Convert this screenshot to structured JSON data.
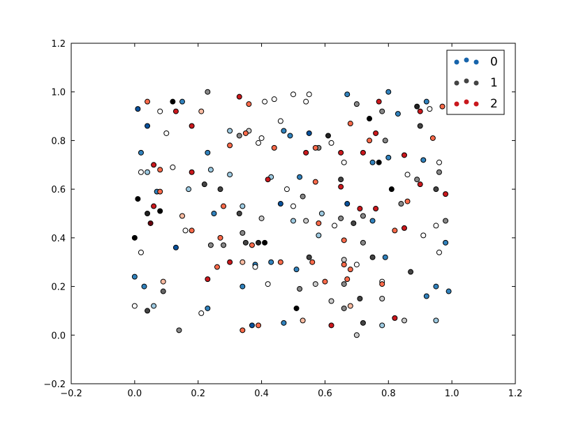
{
  "chart_data": {
    "type": "scatter",
    "xlim": [
      -0.2,
      1.2
    ],
    "xticks": [
      {
        "value": -0.2,
        "label": "−0.2"
      },
      {
        "value": 0,
        "label": "0.0"
      },
      0.2,
      0.4,
      0.6,
      0.8,
      {
        "value": 1,
        "label": "1.0"
      },
      1.2
    ],
    "ylim": [
      -0.2,
      1.2
    ],
    "yticks": [
      {
        "value": -0.2,
        "label": "−0.2"
      },
      {
        "value": 0,
        "label": "0.0"
      },
      0.2,
      0.4,
      0.6,
      0.8,
      {
        "value": 1,
        "label": "1.0"
      },
      1.2
    ],
    "legend": "upper right",
    "series": [
      {
        "name": "0",
        "color": "#1764ab",
        "x": [
          0.01,
          0.15,
          0.04,
          0.02,
          0.04,
          0.07,
          0.17,
          0.23,
          0.24,
          0.25,
          0.13,
          0.0,
          0.03,
          0.06,
          0.23,
          0.37,
          0.34,
          0.38,
          0.43,
          0.3,
          0.3,
          0.34,
          0.43,
          0.47,
          0.49,
          0.55,
          0.52,
          0.5,
          0.46,
          0.51,
          0.47,
          0.67,
          0.8,
          0.83,
          0.92,
          0.8,
          0.75,
          0.67,
          0.75,
          0.79,
          0.78,
          0.92,
          0.99,
          0.98,
          0.95,
          0.95,
          0.91,
          0.58,
          0.59
        ],
        "values": [
          0.93,
          0.96,
          0.86,
          0.75,
          0.67,
          0.59,
          0.6,
          0.75,
          0.68,
          0.5,
          0.36,
          0.24,
          0.2,
          0.12,
          0.11,
          0.04,
          0.2,
          0.29,
          0.3,
          0.84,
          0.66,
          0.53,
          0.65,
          0.84,
          0.82,
          0.83,
          0.65,
          0.47,
          0.54,
          0.27,
          0.05,
          0.99,
          1.0,
          0.91,
          0.96,
          0.73,
          0.71,
          0.54,
          0.47,
          0.32,
          0.04,
          0.16,
          0.18,
          0.38,
          0.2,
          0.06,
          0.72,
          0.41,
          0.5
        ],
        "colors": [
          "#08519c",
          "#3182bd",
          "#08519c",
          "#3182bd",
          "#9ecae1",
          "#3182bd",
          "#9ecae1",
          "#3182bd",
          "#9ecae1",
          "#3182bd",
          "#08519c",
          "#3182bd",
          "#3182bd",
          "#9ecae1",
          "#3182bd",
          "#08519c",
          "#3182bd",
          "#3182bd",
          "#3182bd",
          "#9ecae1",
          "#9ecae1",
          "#9ecae1",
          "#9ecae1",
          "#3182bd",
          "#3182bd",
          "#08519c",
          "#3182bd",
          "#9ecae1",
          "#08519c",
          "#3182bd",
          "#3182bd",
          "#3182bd",
          "#3182bd",
          "#3182bd",
          "#3182bd",
          "#3182bd",
          "#3182bd",
          "#08519c",
          "#3182bd",
          "#3182bd",
          "#9ecae1",
          "#3182bd",
          "#3182bd",
          "#3182bd",
          "#3182bd",
          "#9ecae1",
          "#3182bd",
          "#9ecae1",
          "#9ecae1"
        ]
      },
      {
        "name": "1",
        "color": "#444444",
        "x": [
          0.0,
          0.01,
          0.04,
          0.08,
          0.04,
          0.09,
          0.12,
          0.0,
          0.02,
          0.02,
          0.08,
          0.1,
          0.12,
          0.16,
          0.21,
          0.22,
          0.24,
          0.23,
          0.14,
          0.27,
          0.28,
          0.33,
          0.34,
          0.33,
          0.36,
          0.4,
          0.39,
          0.44,
          0.41,
          0.35,
          0.39,
          0.41,
          0.38,
          0.42,
          0.4,
          0.48,
          0.46,
          0.5,
          0.55,
          0.54,
          0.61,
          0.58,
          0.62,
          0.65,
          0.66,
          0.7,
          0.74,
          0.77,
          0.78,
          0.79,
          0.89,
          0.9,
          0.89,
          0.86,
          0.93,
          0.95,
          0.96,
          0.96,
          0.98,
          0.95,
          0.91,
          0.96,
          0.81,
          0.84,
          0.87,
          0.85,
          0.78,
          0.78,
          0.75,
          0.72,
          0.7,
          0.71,
          0.66,
          0.72,
          0.7,
          0.66,
          0.57,
          0.52,
          0.51,
          0.62,
          0.55,
          0.53,
          0.5,
          0.54,
          0.63,
          0.65,
          0.69,
          0.72,
          0.66
        ],
        "values": [
          0.4,
          0.56,
          0.5,
          0.51,
          0.1,
          0.18,
          0.96,
          0.12,
          0.34,
          0.67,
          0.92,
          0.83,
          0.69,
          0.43,
          0.09,
          0.62,
          0.37,
          1.0,
          0.02,
          0.6,
          0.37,
          0.5,
          0.42,
          0.82,
          0.84,
          0.81,
          0.79,
          0.97,
          0.96,
          0.38,
          0.38,
          0.38,
          0.28,
          0.21,
          0.48,
          0.6,
          0.88,
          0.99,
          0.99,
          0.96,
          0.82,
          0.77,
          0.79,
          0.64,
          0.71,
          0.95,
          0.89,
          0.71,
          0.92,
          0.8,
          0.94,
          0.86,
          0.64,
          0.66,
          0.93,
          0.6,
          0.67,
          0.71,
          0.47,
          0.45,
          0.41,
          0.34,
          0.6,
          0.54,
          0.26,
          0.06,
          0.15,
          0.22,
          0.32,
          0.38,
          0.29,
          0.15,
          0.11,
          0.05,
          0.0,
          0.21,
          0.21,
          0.19,
          0.11,
          0.14,
          0.32,
          0.57,
          0.53,
          0.47,
          0.45,
          0.48,
          0.46,
          0.49,
          0.31
        ],
        "colors": [
          "#000000",
          "#000000",
          "#222222",
          "#000000",
          "#444444",
          "#666666",
          "#000000",
          "#ffffff",
          "#ffffff",
          "#ffffff",
          "#ffffff",
          "#ffffff",
          "#ffffff",
          "#ffffff",
          "#ffffff",
          "#444444",
          "#888888",
          "#888888",
          "#888888",
          "#444444",
          "#888888",
          "#444444",
          "#888888",
          "#888888",
          "#cccccc",
          "#ffffff",
          "#ffffff",
          "#ffffff",
          "#ffffff",
          "#444444",
          "#222222",
          "#000000",
          "#ffffff",
          "#ffffff",
          "#cccccc",
          "#ffffff",
          "#ffffff",
          "#ffffff",
          "#ffffff",
          "#ffffff",
          "#222222",
          "#888888",
          "#ffffff",
          "#444444",
          "#ffffff",
          "#888888",
          "#000000",
          "#000000",
          "#888888",
          "#888888",
          "#222222",
          "#444444",
          "#888888",
          "#ffffff",
          "#ffffff",
          "#444444",
          "#888888",
          "#ffffff",
          "#888888",
          "#ffffff",
          "#ffffff",
          "#ffffff",
          "#000000",
          "#888888",
          "#444444",
          "#cccccc",
          "#cccccc",
          "#ffffff",
          "#444444",
          "#888888",
          "#ffffff",
          "#444444",
          "#888888",
          "#444444",
          "#cccccc",
          "#888888",
          "#cccccc",
          "#888888",
          "#000000",
          "#cccccc",
          "#444444",
          "#888888",
          "#ffffff",
          "#cccccc",
          "#ffffff",
          "#888888",
          "#444444",
          "#888888",
          "#cccccc"
        ]
      },
      {
        "name": "2",
        "color": "#c9181d",
        "x": [
          0.04,
          0.06,
          0.08,
          0.06,
          0.05,
          0.08,
          0.13,
          0.18,
          0.18,
          0.15,
          0.18,
          0.09,
          0.21,
          0.23,
          0.26,
          0.27,
          0.3,
          0.33,
          0.36,
          0.35,
          0.28,
          0.3,
          0.34,
          0.37,
          0.44,
          0.42,
          0.34,
          0.39,
          0.46,
          0.56,
          0.53,
          0.62,
          0.6,
          0.57,
          0.54,
          0.57,
          0.58,
          0.65,
          0.65,
          0.68,
          0.66,
          0.66,
          0.68,
          0.67,
          0.68,
          0.71,
          0.72,
          0.74,
          0.76,
          0.77,
          0.76,
          0.78,
          0.82,
          0.82,
          0.85,
          0.85,
          0.86,
          0.9,
          0.9,
          0.94,
          0.97,
          0.98
        ],
        "values": [
          0.96,
          0.7,
          0.68,
          0.53,
          0.46,
          0.59,
          0.92,
          0.86,
          0.67,
          0.49,
          0.43,
          0.22,
          0.92,
          0.23,
          0.28,
          0.4,
          0.78,
          0.98,
          0.95,
          0.83,
          0.53,
          0.3,
          0.3,
          0.37,
          0.77,
          0.64,
          0.02,
          0.04,
          0.3,
          0.3,
          0.06,
          0.04,
          0.22,
          0.63,
          0.75,
          0.77,
          0.46,
          0.75,
          0.61,
          0.87,
          0.29,
          0.39,
          0.27,
          0.23,
          0.12,
          0.52,
          0.75,
          0.8,
          0.83,
          0.96,
          0.52,
          0.21,
          0.07,
          0.43,
          0.44,
          0.74,
          0.55,
          0.62,
          0.92,
          0.81,
          0.94,
          0.58
        ],
        "colors": [
          "#fb6a4a",
          "#cb181d",
          "#fb6a4a",
          "#cb181d",
          "#67000d",
          "#fb6a4a",
          "#cb181d",
          "#cb181d",
          "#cb181d",
          "#fcbba1",
          "#fb6a4a",
          "#fcbba1",
          "#fcbba1",
          "#cb181d",
          "#fb6a4a",
          "#fb6a4a",
          "#fb6a4a",
          "#cb181d",
          "#fb6a4a",
          "#fb6a4a",
          "#fb6a4a",
          "#cb181d",
          "#fcbba1",
          "#fb6a4a",
          "#fb6a4a",
          "#cb181d",
          "#fb6a4a",
          "#fb6a4a",
          "#fb6a4a",
          "#fb6a4a",
          "#fcbba1",
          "#cb181d",
          "#fb6a4a",
          "#fb6a4a",
          "#cb181d",
          "#fb6a4a",
          "#fb6a4a",
          "#cb181d",
          "#cb181d",
          "#fb6a4a",
          "#fb6a4a",
          "#fb6a4a",
          "#fb6a4a",
          "#fb6a4a",
          "#fcbba1",
          "#cb181d",
          "#cb181d",
          "#fb6a4a",
          "#cb181d",
          "#cb181d",
          "#cb181d",
          "#fb6a4a",
          "#cb181d",
          "#fb6a4a",
          "#cb181d",
          "#cb181d",
          "#fb6a4a",
          "#cb181d",
          "#cb181d",
          "#fb6a4a",
          "#fb6a4a",
          "#cb181d"
        ]
      }
    ]
  }
}
